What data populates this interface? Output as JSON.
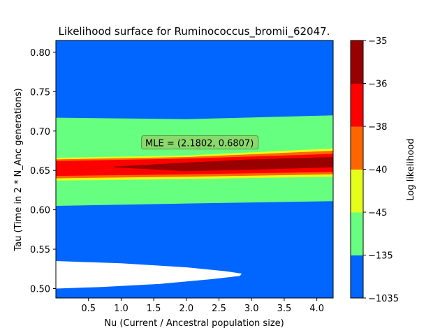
{
  "chart_data": {
    "type": "contour",
    "title": "Likelihood surface for Ruminococcus_bromii_62047.",
    "xlabel": "Nu (Current / Ancestral population size)",
    "ylabel": "Tau (Time in 2 * N_Anc generations)",
    "xlim": [
      0.0,
      4.25
    ],
    "ylim": [
      0.488,
      0.815
    ],
    "xticks": [
      0.5,
      1.0,
      1.5,
      2.0,
      2.5,
      3.0,
      3.5,
      4.0
    ],
    "xtick_labels": [
      "0.5",
      "1.0",
      "1.5",
      "2.0",
      "2.5",
      "3.0",
      "3.5",
      "4.0"
    ],
    "yticks": [
      0.5,
      0.55,
      0.6,
      0.65,
      0.7,
      0.75,
      0.8
    ],
    "ytick_labels": [
      "0.50",
      "0.55",
      "0.60",
      "0.65",
      "0.70",
      "0.75",
      "0.80"
    ],
    "colorbar": {
      "label": "Log likelihood",
      "levels": [
        -1035,
        -135,
        -45,
        -40,
        -38,
        -36,
        -35
      ],
      "level_labels": [
        "−1035",
        "−135",
        "−45",
        "−40",
        "−38",
        "−36",
        "−35"
      ],
      "colors": [
        "#0066ff",
        "#66ff80",
        "#e6ff1a",
        "#ff6600",
        "#ff0000",
        "#990000"
      ]
    },
    "bands": [
      {
        "level_index": 1,
        "top": [
          [
            0.0,
            0.717
          ],
          [
            2.0,
            0.715
          ],
          [
            4.25,
            0.72
          ]
        ],
        "bottom": [
          [
            4.25,
            0.611
          ],
          [
            2.0,
            0.608
          ],
          [
            0.0,
            0.605
          ]
        ]
      },
      {
        "level_index": 2,
        "top": [
          [
            0.0,
            0.666
          ],
          [
            2.0,
            0.669
          ],
          [
            4.25,
            0.678
          ]
        ],
        "bottom": [
          [
            4.25,
            0.642
          ],
          [
            2.0,
            0.639
          ],
          [
            0.0,
            0.637
          ]
        ]
      },
      {
        "level_index": 3,
        "top": [
          [
            0.0,
            0.664
          ],
          [
            2.0,
            0.667
          ],
          [
            4.25,
            0.675
          ]
        ],
        "bottom": [
          [
            4.25,
            0.645
          ],
          [
            2.0,
            0.642
          ],
          [
            0.0,
            0.64
          ]
        ]
      },
      {
        "level_index": 4,
        "top": [
          [
            0.0,
            0.662
          ],
          [
            2.0,
            0.665
          ],
          [
            4.25,
            0.671
          ]
        ],
        "bottom": [
          [
            4.25,
            0.648
          ],
          [
            2.0,
            0.645
          ],
          [
            0.0,
            0.643
          ]
        ]
      },
      {
        "level_index": 5,
        "top": [
          [
            0.9,
            0.655
          ],
          [
            2.0,
            0.66
          ],
          [
            3.0,
            0.664
          ],
          [
            4.25,
            0.667
          ]
        ],
        "bottom": [
          [
            4.25,
            0.654
          ],
          [
            3.0,
            0.651
          ],
          [
            2.0,
            0.649
          ],
          [
            0.9,
            0.654
          ]
        ]
      }
    ],
    "unfilled_region": [
      [
        0.0,
        0.535
      ],
      [
        1.0,
        0.532
      ],
      [
        2.0,
        0.527
      ],
      [
        2.6,
        0.522
      ],
      [
        2.85,
        0.519
      ],
      [
        2.82,
        0.516
      ],
      [
        2.4,
        0.512
      ],
      [
        1.6,
        0.506
      ],
      [
        0.7,
        0.502
      ],
      [
        0.0,
        0.5
      ]
    ],
    "mle": {
      "x": 2.1802,
      "y": 0.6807,
      "label": "MLE = (2.1802, 0.6807)"
    }
  }
}
